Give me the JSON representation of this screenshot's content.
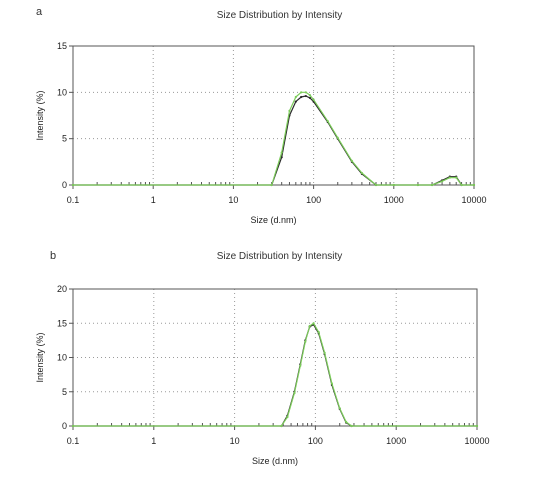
{
  "chart_data": [
    {
      "type": "line",
      "panel_label": "a",
      "title": "Size Distribution by Intensity",
      "xlabel": "Size (d.nm)",
      "ylabel": "Intensity (%)",
      "x_scale": "log",
      "xlim": [
        0.1,
        10000
      ],
      "ylim": [
        0,
        15
      ],
      "x_ticks": [
        0.1,
        1,
        10,
        100,
        1000,
        10000
      ],
      "x_tick_labels": [
        "0.1",
        "1",
        "10",
        "100",
        "1000",
        "10000"
      ],
      "y_ticks": [
        0,
        5,
        10,
        15
      ],
      "y_tick_labels": [
        "0",
        "5",
        "10",
        "15"
      ],
      "grid": true,
      "series": [
        {
          "color": "#2a2a2a",
          "x": [
            0.1,
            30,
            40,
            50,
            60,
            70,
            80,
            90,
            100,
            150,
            200,
            300,
            400,
            600,
            1000,
            2000,
            3000,
            4000,
            5000,
            6000,
            7000,
            10000
          ],
          "y": [
            0,
            0,
            3,
            7.5,
            9,
            9.5,
            9.6,
            9.4,
            9,
            6.8,
            5,
            2.5,
            1.2,
            0,
            0,
            0,
            0,
            0.5,
            0.9,
            0.9,
            0,
            0
          ]
        },
        {
          "color": "#7ccc5a",
          "x": [
            0.1,
            30,
            40,
            50,
            60,
            70,
            80,
            90,
            100,
            150,
            200,
            300,
            400,
            600,
            1000,
            2000,
            3000,
            4000,
            5000,
            6000,
            7000,
            10000
          ],
          "y": [
            0,
            0,
            3.5,
            8,
            9.5,
            10,
            10,
            9.7,
            9.2,
            6.9,
            5.1,
            2.6,
            1.3,
            0,
            0,
            0,
            0,
            0.4,
            0.8,
            0.8,
            0,
            0
          ]
        }
      ]
    },
    {
      "type": "line",
      "panel_label": "b",
      "title": "Size Distribution by Intensity",
      "xlabel": "Size (d.nm)",
      "ylabel": "Intensity (%)",
      "x_scale": "log",
      "xlim": [
        0.1,
        10000
      ],
      "ylim": [
        0,
        20
      ],
      "x_ticks": [
        0.1,
        1,
        10,
        100,
        1000,
        10000
      ],
      "x_tick_labels": [
        "0.1",
        "1",
        "10",
        "100",
        "1000",
        "10000"
      ],
      "y_ticks": [
        0,
        5,
        10,
        15,
        20
      ],
      "y_tick_labels": [
        "0",
        "5",
        "10",
        "15",
        "20"
      ],
      "grid": true,
      "series": [
        {
          "color": "#2a2a2a",
          "x": [
            0.1,
            38,
            45,
            55,
            65,
            75,
            85,
            95,
            110,
            130,
            160,
            200,
            240,
            280,
            10000
          ],
          "y": [
            0,
            0,
            1.5,
            5,
            9,
            12.5,
            14.5,
            14.8,
            13.5,
            10.5,
            6,
            2.5,
            0.5,
            0,
            0
          ]
        },
        {
          "color": "#7ccc5a",
          "x": [
            0.1,
            38,
            45,
            55,
            65,
            75,
            85,
            95,
            110,
            130,
            160,
            200,
            240,
            280,
            10000
          ],
          "y": [
            0,
            0,
            1.3,
            4.8,
            8.8,
            12.3,
            14.6,
            15,
            13.7,
            10.7,
            6.2,
            2.6,
            0.6,
            0,
            0
          ]
        }
      ]
    }
  ]
}
